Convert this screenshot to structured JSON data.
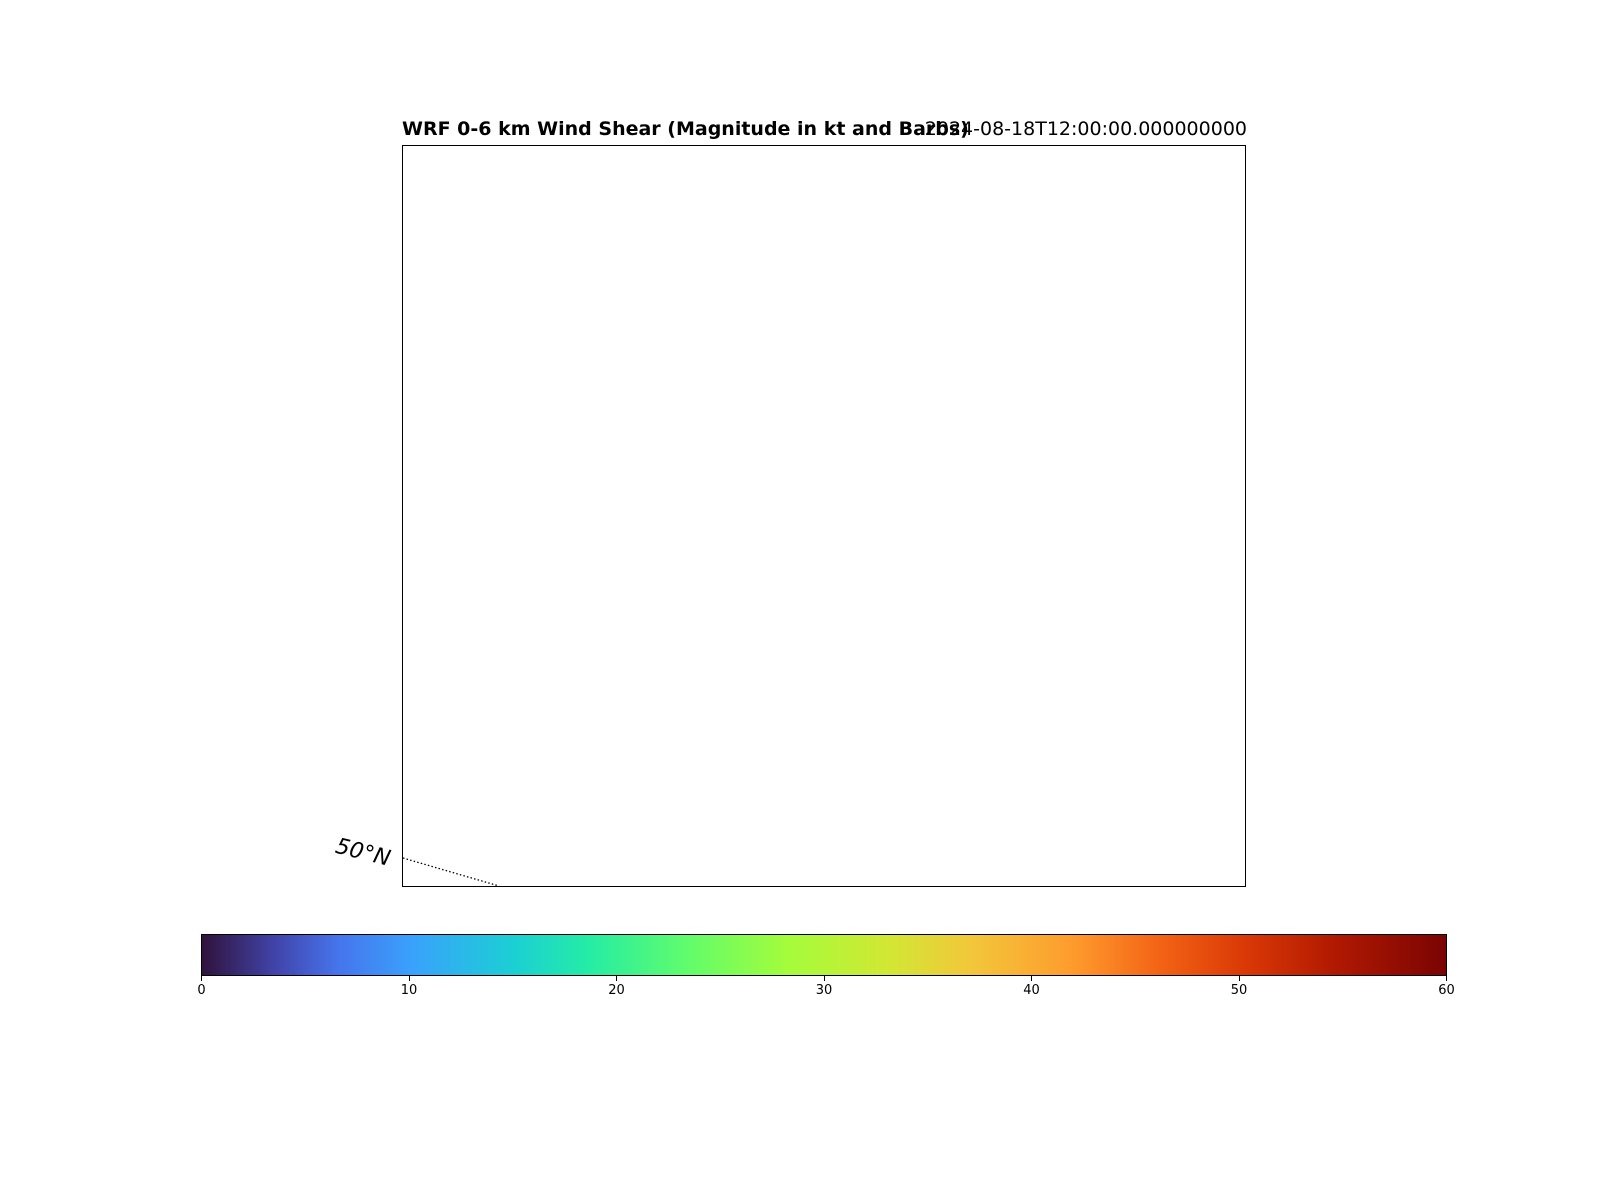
{
  "title": {
    "left": "WRF 0-6 km Wind Shear (Magnitude in kt and Barbs)",
    "right": "2024-08-18T12:00:00.000000000"
  },
  "map": {
    "gridline_labels": [
      "50°N"
    ],
    "gridline_style": "dotted"
  },
  "colorbar": {
    "cmap": "turbo",
    "vmin": 0,
    "vmax": 60,
    "ticks": [
      "0",
      "10",
      "20",
      "30",
      "40",
      "50",
      "60"
    ]
  }
}
